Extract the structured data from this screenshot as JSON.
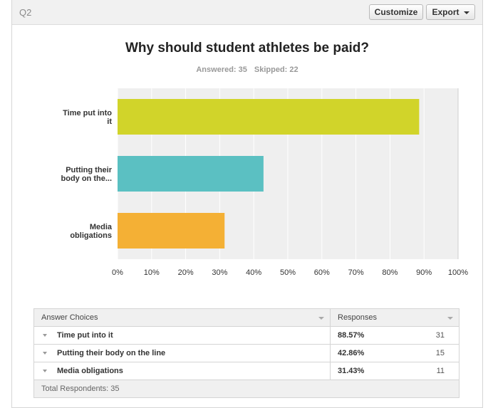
{
  "header": {
    "question_label": "Q2",
    "customize_label": "Customize",
    "export_label": "Export"
  },
  "question": {
    "title": "Why should student athletes be paid?",
    "answered": "Answered: 35",
    "skipped": "Skipped: 22"
  },
  "chart_data": {
    "type": "bar",
    "orientation": "horizontal",
    "categories": [
      "Time put into it",
      "Putting their body on the...",
      "Media obligations"
    ],
    "category_lines": [
      [
        "Time put into",
        "it"
      ],
      [
        "Putting their",
        "body on the..."
      ],
      [
        "Media",
        "obligations"
      ]
    ],
    "values": [
      88.57,
      42.86,
      31.43
    ],
    "colors": [
      "#d1d42a",
      "#5bc0c2",
      "#f4b035"
    ],
    "xlim": [
      0,
      100
    ],
    "xticks": [
      "0%",
      "10%",
      "20%",
      "30%",
      "40%",
      "50%",
      "60%",
      "70%",
      "80%",
      "90%",
      "100%"
    ],
    "grid": true,
    "plot_background": "#efefef"
  },
  "table": {
    "headers": {
      "choices": "Answer Choices",
      "responses": "Responses"
    },
    "rows": [
      {
        "choice": "Time put into it",
        "percent": "88.57%",
        "count": "31"
      },
      {
        "choice": "Putting their body on the line",
        "percent": "42.86%",
        "count": "15"
      },
      {
        "choice": "Media obligations",
        "percent": "31.43%",
        "count": "11"
      }
    ],
    "footer": "Total Respondents: 35"
  }
}
